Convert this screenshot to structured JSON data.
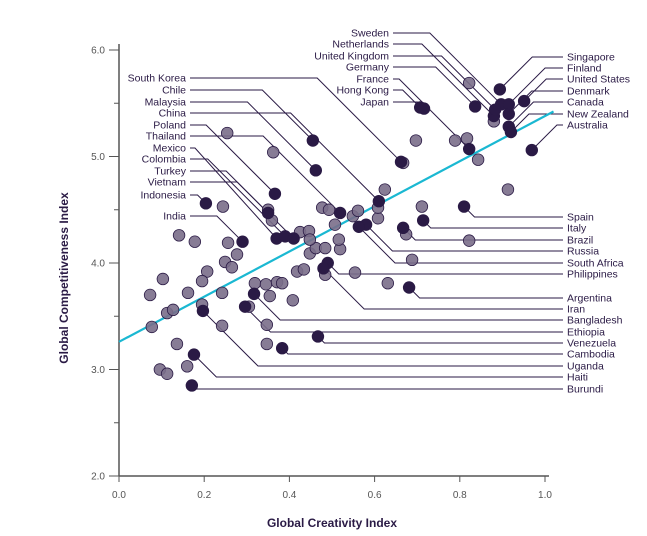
{
  "chart_data": {
    "type": "scatter",
    "title": "",
    "xlabel": "Global Creativity Index",
    "ylabel": "Global Competitiveness Index",
    "xlim": [
      0.0,
      1.0
    ],
    "ylim": [
      2.0,
      6.0
    ],
    "xticks": [
      "0.0",
      "0.2",
      "0.4",
      "0.6",
      "0.8",
      "1.0"
    ],
    "yticks": [
      "2.0",
      "3.0",
      "4.0",
      "5.0",
      "6.0"
    ],
    "grid": false,
    "legend": "none",
    "colors": {
      "labeled": "#2a1a45",
      "unlabeled": "#7a6e8a",
      "trend": "#1ab8d2",
      "axis": "#555555"
    },
    "trend_line": {
      "intercept": 3.26,
      "slope": 2.12,
      "x_range": [
        0.0,
        1.02
      ]
    },
    "labeled_points": [
      {
        "label": "South Korea",
        "side": "left",
        "x": 0.662,
        "y": 4.95
      },
      {
        "label": "Chile",
        "side": "left",
        "x": 0.455,
        "y": 5.15
      },
      {
        "label": "Malaysia",
        "side": "left",
        "x": 0.462,
        "y": 4.87
      },
      {
        "label": "China",
        "side": "left",
        "x": 0.61,
        "y": 4.58
      },
      {
        "label": "Poland",
        "side": "left",
        "x": 0.366,
        "y": 4.65
      },
      {
        "label": "Thailand",
        "side": "left",
        "x": 0.519,
        "y": 4.47
      },
      {
        "label": "Mexico",
        "side": "left",
        "x": 0.37,
        "y": 4.23
      },
      {
        "label": "Colombia",
        "side": "left",
        "x": 0.39,
        "y": 4.25
      },
      {
        "label": "Turkey",
        "side": "left",
        "x": 0.41,
        "y": 4.23
      },
      {
        "label": "Vietnam",
        "side": "left",
        "x": 0.35,
        "y": 4.47
      },
      {
        "label": "Indonesia",
        "side": "left",
        "x": 0.204,
        "y": 4.56
      },
      {
        "label": "India",
        "side": "left",
        "x": 0.29,
        "y": 4.2
      },
      {
        "label": "Sweden",
        "side": "top",
        "x": 0.897,
        "y": 5.49
      },
      {
        "label": "Netherlands",
        "side": "top",
        "x": 0.88,
        "y": 5.38
      },
      {
        "label": "United Kingdom",
        "side": "top",
        "x": 0.883,
        "y": 5.44
      },
      {
        "label": "Germany",
        "side": "top",
        "x": 0.836,
        "y": 5.47
      },
      {
        "label": "France",
        "side": "top",
        "x": 0.822,
        "y": 5.07
      },
      {
        "label": "Hong Kong",
        "side": "top",
        "x": 0.707,
        "y": 5.46
      },
      {
        "label": "Japan",
        "side": "top",
        "x": 0.716,
        "y": 5.45
      },
      {
        "label": "Singapore",
        "side": "right",
        "x": 0.894,
        "y": 5.63
      },
      {
        "label": "Finland",
        "side": "right",
        "x": 0.915,
        "y": 5.49
      },
      {
        "label": "United States",
        "side": "right",
        "x": 0.951,
        "y": 5.52
      },
      {
        "label": "Denmark",
        "side": "right",
        "x": 0.915,
        "y": 5.4
      },
      {
        "label": "Canada",
        "side": "right",
        "x": 0.915,
        "y": 5.28
      },
      {
        "label": "New Zealand",
        "side": "right",
        "x": 0.92,
        "y": 5.23
      },
      {
        "label": "Australia",
        "side": "right",
        "x": 0.969,
        "y": 5.06
      },
      {
        "label": "Spain",
        "side": "right",
        "x": 0.81,
        "y": 4.53
      },
      {
        "label": "Italy",
        "side": "right",
        "x": 0.714,
        "y": 4.4
      },
      {
        "label": "Brazil",
        "side": "right",
        "x": 0.667,
        "y": 4.33
      },
      {
        "label": "Russia",
        "side": "right",
        "x": 0.58,
        "y": 4.36
      },
      {
        "label": "South Africa",
        "side": "right",
        "x": 0.563,
        "y": 4.34
      },
      {
        "label": "Philippines",
        "side": "right",
        "x": 0.49,
        "y": 4.0
      },
      {
        "label": "Argentina",
        "side": "right",
        "x": 0.681,
        "y": 3.77
      },
      {
        "label": "Iran",
        "side": "right",
        "x": 0.48,
        "y": 3.95
      },
      {
        "label": "Bangladesh",
        "side": "right",
        "x": 0.317,
        "y": 3.71
      },
      {
        "label": "Ethiopia",
        "side": "right",
        "x": 0.296,
        "y": 3.59
      },
      {
        "label": "Venezuela",
        "side": "right",
        "x": 0.467,
        "y": 3.31
      },
      {
        "label": "Cambodia",
        "side": "right",
        "x": 0.383,
        "y": 3.2
      },
      {
        "label": "Uganda",
        "side": "right",
        "x": 0.197,
        "y": 3.55
      },
      {
        "label": "Haiti",
        "side": "right",
        "x": 0.176,
        "y": 3.14
      },
      {
        "label": "Burundi",
        "side": "right",
        "x": 0.171,
        "y": 2.85
      }
    ],
    "other_points": [
      [
        0.073,
        3.7
      ],
      [
        0.103,
        3.85
      ],
      [
        0.141,
        4.26
      ],
      [
        0.178,
        4.2
      ],
      [
        0.256,
        4.19
      ],
      [
        0.277,
        4.08
      ],
      [
        0.249,
        4.01
      ],
      [
        0.265,
        3.96
      ],
      [
        0.207,
        3.92
      ],
      [
        0.195,
        3.83
      ],
      [
        0.162,
        3.72
      ],
      [
        0.113,
        3.53
      ],
      [
        0.127,
        3.56
      ],
      [
        0.077,
        3.4
      ],
      [
        0.136,
        3.24
      ],
      [
        0.096,
        3.0
      ],
      [
        0.113,
        2.96
      ],
      [
        0.16,
        3.03
      ],
      [
        0.242,
        3.72
      ],
      [
        0.195,
        3.61
      ],
      [
        0.242,
        3.41
      ],
      [
        0.319,
        3.81
      ],
      [
        0.345,
        3.8
      ],
      [
        0.371,
        3.82
      ],
      [
        0.383,
        3.81
      ],
      [
        0.354,
        3.69
      ],
      [
        0.408,
        3.65
      ],
      [
        0.418,
        3.92
      ],
      [
        0.434,
        3.94
      ],
      [
        0.347,
        3.42
      ],
      [
        0.347,
        3.24
      ],
      [
        0.305,
        3.59
      ],
      [
        0.448,
        4.09
      ],
      [
        0.462,
        4.14
      ],
      [
        0.484,
        4.14
      ],
      [
        0.484,
        3.89
      ],
      [
        0.519,
        4.13
      ],
      [
        0.516,
        4.22
      ],
      [
        0.507,
        4.36
      ],
      [
        0.549,
        4.44
      ],
      [
        0.561,
        4.49
      ],
      [
        0.608,
        4.42
      ],
      [
        0.608,
        4.52
      ],
      [
        0.631,
        3.81
      ],
      [
        0.554,
        3.91
      ],
      [
        0.425,
        4.29
      ],
      [
        0.446,
        4.3
      ],
      [
        0.477,
        4.52
      ],
      [
        0.493,
        4.5
      ],
      [
        0.35,
        4.5
      ],
      [
        0.359,
        4.4
      ],
      [
        0.448,
        4.22
      ],
      [
        0.624,
        4.69
      ],
      [
        0.711,
        4.53
      ],
      [
        0.822,
        4.21
      ],
      [
        0.674,
        4.27
      ],
      [
        0.688,
        4.03
      ],
      [
        0.913,
        4.69
      ],
      [
        0.843,
        4.97
      ],
      [
        0.789,
        5.15
      ],
      [
        0.817,
        5.17
      ],
      [
        0.697,
        5.15
      ],
      [
        0.822,
        5.69
      ],
      [
        0.88,
        5.33
      ],
      [
        0.667,
        4.94
      ],
      [
        0.254,
        5.22
      ],
      [
        0.362,
        5.04
      ],
      [
        0.244,
        4.53
      ]
    ]
  }
}
